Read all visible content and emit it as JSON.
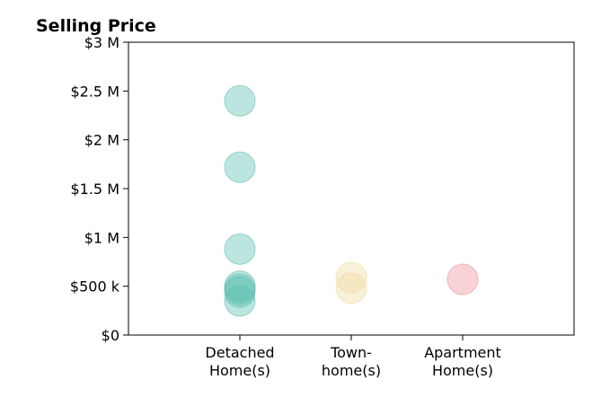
{
  "chart_data": {
    "type": "scatter",
    "title": "Selling Price",
    "xlabel": "",
    "ylabel": "",
    "categories": [
      [
        "Detached",
        "Home(s)"
      ],
      [
        "Town-",
        "home(s)"
      ],
      [
        "Apartment",
        "Home(s)"
      ]
    ],
    "y_ticks": [
      {
        "value": 0,
        "label": "$0"
      },
      {
        "value": 500000,
        "label": "$500 k"
      },
      {
        "value": 1000000,
        "label": "$1 M"
      },
      {
        "value": 1500000,
        "label": "$1.5 M"
      },
      {
        "value": 2000000,
        "label": "$2 M"
      },
      {
        "value": 2500000,
        "label": "$2.5 M"
      },
      {
        "value": 3000000,
        "label": "$3 M"
      }
    ],
    "ylim": [
      0,
      3000000
    ],
    "grid": false,
    "legend": "none",
    "series": [
      {
        "category": 0,
        "color": "#5bbfb0",
        "values": [
          2400000,
          1720000,
          880000,
          500000,
          470000,
          440000,
          350000
        ]
      },
      {
        "category": 1,
        "color": "#f0d9a0",
        "values": [
          590000,
          480000
        ]
      },
      {
        "category": 2,
        "color": "#ef8f98",
        "values": [
          570000
        ]
      }
    ]
  }
}
